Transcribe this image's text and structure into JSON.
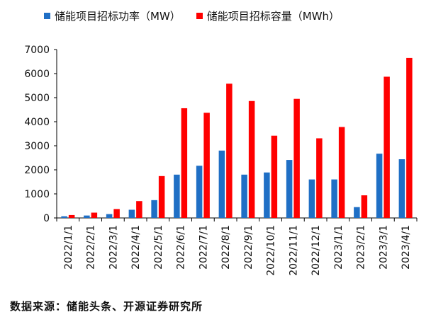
{
  "legend": {
    "power": "储能项目招标功率（MW）",
    "capacity": "储能项目招标容量（MWh）"
  },
  "source": "数据来源：储能头条、开源证券研究所",
  "chart_data": {
    "type": "bar",
    "categories": [
      "2022/1/1",
      "2022/2/1",
      "2022/3/1",
      "2022/4/1",
      "2022/5/1",
      "2022/6/1",
      "2022/7/1",
      "2022/8/1",
      "2022/9/1",
      "2022/10/1",
      "2022/11/1",
      "2022/12/1",
      "2023/1/1",
      "2023/2/1",
      "2023/3/1",
      "2023/4/1"
    ],
    "series": [
      {
        "name": "储能项目招标功率（MW）",
        "color": "#1f6fc5",
        "values": [
          70,
          100,
          160,
          340,
          740,
          1800,
          2170,
          2800,
          1800,
          1890,
          2410,
          1600,
          1600,
          450,
          2670,
          2440
        ]
      },
      {
        "name": "储能项目招标容量（MWh）",
        "color": "#ff0000",
        "values": [
          120,
          220,
          370,
          700,
          1740,
          4560,
          4370,
          5580,
          4860,
          3420,
          4950,
          3310,
          3780,
          940,
          5870,
          6650
        ]
      }
    ],
    "yticks": [
      0,
      1000,
      2000,
      3000,
      4000,
      5000,
      6000,
      7000
    ],
    "ylim": [
      0,
      7000
    ],
    "grid": false,
    "legend_position": "top"
  }
}
